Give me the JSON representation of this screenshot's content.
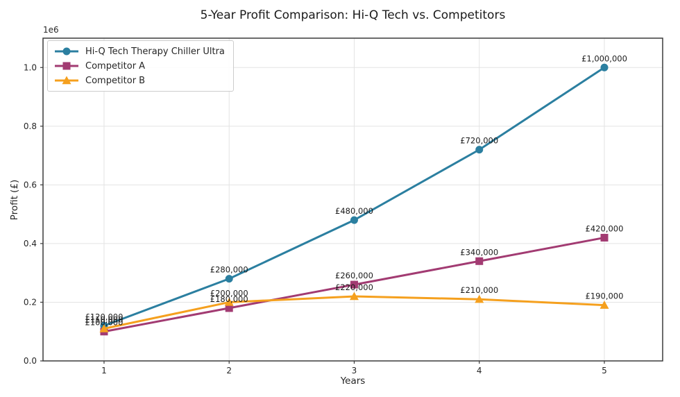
{
  "chart_data": {
    "type": "line",
    "title": "5-Year Profit Comparison: Hi-Q Tech vs. Competitors",
    "xlabel": "Years",
    "ylabel": "Profit (£)",
    "y_offset_label": "1e6",
    "x": [
      1,
      2,
      3,
      4,
      5
    ],
    "xtick_labels": [
      "1",
      "2",
      "3",
      "4",
      "5"
    ],
    "ytick_values": [
      0,
      200000,
      400000,
      600000,
      800000,
      1000000
    ],
    "ytick_labels": [
      "0.0",
      "0.2",
      "0.4",
      "0.6",
      "0.8",
      "1.0"
    ],
    "xlim": [
      0.512,
      5.466
    ],
    "ylim": [
      0,
      1100000
    ],
    "grid": true,
    "legend_position": "upper-left",
    "series": [
      {
        "name": "Hi-Q Tech Therapy Chiller Ultra",
        "color": "#2B7FA0",
        "marker": "circle",
        "values": [
          120000,
          280000,
          480000,
          720000,
          1000000
        ],
        "labels": [
          "£120,000",
          "£280,000",
          "£480,000",
          "£720,000",
          "£1,000,000"
        ]
      },
      {
        "name": "Competitor A",
        "color": "#A23B72",
        "marker": "square",
        "values": [
          100000,
          180000,
          260000,
          340000,
          420000
        ],
        "labels": [
          "£100,000",
          "£180,000",
          "£260,000",
          "£340,000",
          "£420,000"
        ]
      },
      {
        "name": "Competitor B",
        "color": "#F5A01E",
        "marker": "triangle",
        "values": [
          110000,
          200000,
          220000,
          210000,
          190000
        ],
        "labels": [
          "£110,000",
          "£200,000",
          "£220,000",
          "£210,000",
          "£190,000"
        ]
      }
    ]
  }
}
